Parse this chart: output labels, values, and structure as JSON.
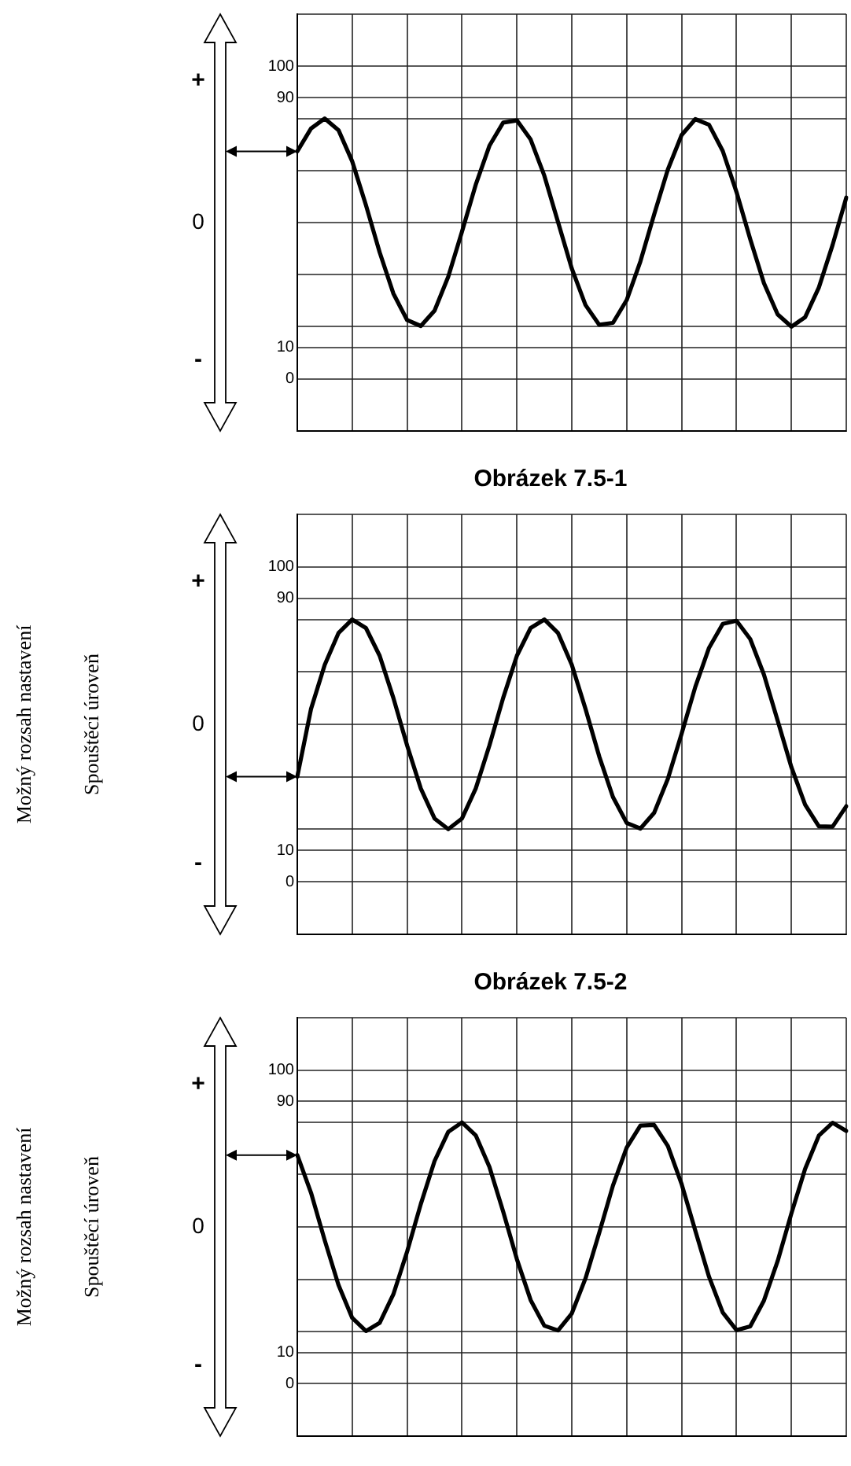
{
  "chart_data": [
    {
      "type": "line",
      "title": "Obrázek 7.5-1",
      "annotations": [
        "+",
        "0",
        "-"
      ],
      "categories": [
        null,
        null,
        null,
        null,
        null,
        null,
        null,
        null,
        null,
        null,
        null,
        null,
        null,
        null,
        null,
        null,
        null,
        null,
        null,
        null,
        null,
        null,
        null,
        null,
        null,
        null,
        null,
        null,
        null,
        null,
        null,
        null,
        null,
        null,
        null,
        null,
        null,
        null,
        null,
        null,
        null
      ],
      "series": [
        {
          "color": "#000000",
          "values": [
            72.8,
            80.1,
            83.3,
            79.6,
            69.6,
            55.6,
            40.5,
            27.3,
            18.8,
            16.9,
            21.8,
            32.7,
            47.1,
            62.1,
            74.6,
            82.0,
            82.7,
            76.6,
            65.0,
            50.1,
            35.3,
            23.6,
            17.3,
            17.9,
            25.2,
            37.6,
            52.6,
            67.0,
            78.0,
            83.1,
            81.3,
            72.9,
            59.8,
            44.7,
            30.6,
            20.6,
            16.7,
            19.7,
            29.2,
            42.8,
            58.0
          ]
        }
      ],
      "ylim": [
        -16.7,
        116.7
      ],
      "yticks": [
        {
          "value": -16.7,
          "label": null
        },
        0,
        10,
        {
          "value": 16.7,
          "label": null
        },
        {
          "value": 33.3,
          "label": null
        },
        {
          "value": 50,
          "label": null
        },
        {
          "value": 66.7,
          "label": null
        },
        {
          "value": 83.3,
          "label": null
        },
        90,
        100,
        {
          "value": 116.7,
          "label": null
        }
      ],
      "grid": true
    },
    {
      "type": "line",
      "title": "Obrázek 7.5-2",
      "annotations": [
        "+",
        "0",
        "-",
        "Možný rozsah nastavení",
        "Spouštěcí úroveň"
      ],
      "categories": [
        null,
        null,
        null,
        null,
        null,
        null,
        null,
        null,
        null,
        null,
        null,
        null,
        null,
        null,
        null,
        null,
        null,
        null,
        null,
        null,
        null,
        null,
        null,
        null,
        null,
        null,
        null,
        null,
        null,
        null,
        null,
        null,
        null,
        null,
        null,
        null,
        null,
        null,
        null,
        null,
        null
      ],
      "series": [
        {
          "color": "#000000",
          "values": [
            33.4,
            54.9,
            68.9,
            79.0,
            83.3,
            80.6,
            71.8,
            58.4,
            43.3,
            29.6,
            20.1,
            16.7,
            20.1,
            29.6,
            43.3,
            58.4,
            71.8,
            80.6,
            83.3,
            79.0,
            68.9,
            54.9,
            39.8,
            26.9,
            18.7,
            16.9,
            21.9,
            32.7,
            47.0,
            61.9,
            74.3,
            81.9,
            82.9,
            77.1,
            65.8,
            51.2,
            36.4,
            24.5,
            17.6,
            17.5,
            24.0
          ]
        }
      ],
      "ylim": [
        -16.7,
        116.7
      ],
      "yticks": [
        {
          "value": -16.7,
          "label": null
        },
        0,
        10,
        {
          "value": 16.7,
          "label": null
        },
        {
          "value": 33.3,
          "label": null
        },
        {
          "value": 50,
          "label": null
        },
        {
          "value": 66.7,
          "label": null
        },
        {
          "value": 83.3,
          "label": null
        },
        90,
        100,
        {
          "value": 116.7,
          "label": null
        }
      ],
      "grid": true
    },
    {
      "type": "line",
      "annotations": [
        "+",
        "0",
        "-",
        "Možný rozsah nastavení",
        "Spouštěcí úroveň"
      ],
      "categories": [
        null,
        null,
        null,
        null,
        null,
        null,
        null,
        null,
        null,
        null,
        null,
        null,
        null,
        null,
        null,
        null,
        null,
        null,
        null,
        null,
        null,
        null,
        null,
        null,
        null,
        null,
        null,
        null,
        null,
        null,
        null,
        null,
        null,
        null,
        null,
        null,
        null,
        null,
        null,
        null,
        null
      ],
      "series": [
        {
          "color": "#000000",
          "values": [
            72.9,
            60.9,
            45.7,
            31.5,
            21.0,
            16.8,
            19.4,
            28.5,
            42.1,
            57.3,
            71.0,
            80.3,
            83.3,
            79.2,
            69.1,
            54.9,
            39.7,
            26.7,
            18.5,
            17.0,
            22.4,
            33.6,
            48.1,
            63.2,
            75.3,
            82.3,
            82.5,
            75.8,
            63.7,
            48.8,
            34.1,
            22.7,
            17.1,
            18.3,
            26.5,
            39.1,
            54.3,
            68.5,
            79.1,
            83.2,
            80.6
          ]
        }
      ],
      "ylim": [
        -16.7,
        116.7
      ],
      "yticks": [
        {
          "value": -16.7,
          "label": null
        },
        0,
        10,
        {
          "value": 16.7,
          "label": null
        },
        {
          "value": 33.3,
          "label": null
        },
        {
          "value": 50,
          "label": null
        },
        {
          "value": 66.7,
          "label": null
        },
        {
          "value": 83.3,
          "label": null
        },
        90,
        100,
        {
          "value": 116.7,
          "label": null
        }
      ],
      "grid": true
    }
  ]
}
